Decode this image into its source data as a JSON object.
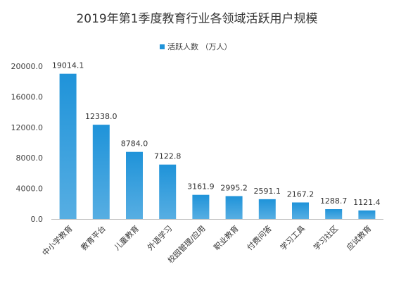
{
  "chart_data": {
    "type": "bar",
    "title": "2019年第1季度教育行业各领域活跃用户规模",
    "series": [
      {
        "name": "活跃人数 （万人）",
        "color": "#1f93d9",
        "values": [
          19014.1,
          12338.0,
          8784.0,
          7122.8,
          3161.9,
          2995.2,
          2591.1,
          2167.2,
          1288.7,
          1121.4
        ]
      }
    ],
    "categories": [
      "中小学教育",
      "教育平台",
      "儿童教育",
      "外语学习",
      "校园管理/应用",
      "职业教育",
      "付费问答",
      "学习工具",
      "学习社区",
      "应试教育"
    ],
    "value_labels": [
      "19014.1",
      "12338.0",
      "8784.0",
      "7122.8",
      "3161.9",
      "2995.2",
      "2591.1",
      "2167.2",
      "1288.7",
      "1121.4"
    ],
    "y_ticks": [
      "0.0",
      "4000.0",
      "8000.0",
      "12000.0",
      "16000.0",
      "20000.0"
    ],
    "ylim": [
      0,
      20000
    ],
    "legend_position": "top",
    "grid": false
  }
}
